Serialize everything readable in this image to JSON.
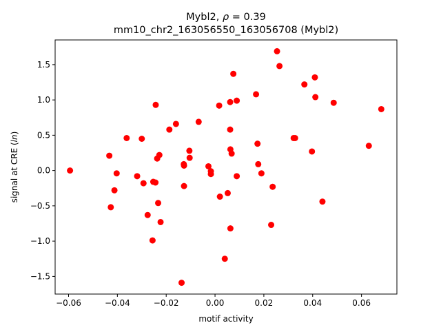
{
  "chart_data": {
    "type": "scatter",
    "title_line1_prefix": "Mybl2, ",
    "title_line1_rho": "ρ",
    "title_line1_suffix": " = 0.39",
    "title_line2": "mm10_chr2_163056550_163056708 (Mybl2)",
    "xlabel": "motif activity",
    "ylabel_prefix": "signal at CRE (",
    "ylabel_italic": "ln",
    "ylabel_suffix": ")",
    "xlim": [
      -0.0655,
      0.0745
    ],
    "ylim": [
      -1.75,
      1.85
    ],
    "xticks": [
      -0.06,
      -0.04,
      -0.02,
      0.0,
      0.02,
      0.04,
      0.06
    ],
    "xtick_labels": [
      "−0.06",
      "−0.04",
      "−0.02",
      "0.00",
      "0.02",
      "0.04",
      "0.06"
    ],
    "yticks": [
      -1.5,
      -1.0,
      -0.5,
      0.0,
      0.5,
      1.0,
      1.5
    ],
    "ytick_labels": [
      "−1.5",
      "−1.0",
      "−0.5",
      "0.0",
      "0.5",
      "1.0",
      "1.5"
    ],
    "grid": false,
    "legend": "none",
    "marker_color": "#ff0000",
    "points": [
      {
        "x": -0.0594,
        "y": 0.0
      },
      {
        "x": -0.0433,
        "y": 0.21
      },
      {
        "x": -0.0427,
        "y": -0.52
      },
      {
        "x": -0.0412,
        "y": -0.28
      },
      {
        "x": -0.0403,
        "y": -0.04
      },
      {
        "x": -0.0362,
        "y": 0.46
      },
      {
        "x": -0.0319,
        "y": -0.08
      },
      {
        "x": -0.03,
        "y": 0.45
      },
      {
        "x": -0.0293,
        "y": -0.18
      },
      {
        "x": -0.0276,
        "y": -0.63
      },
      {
        "x": -0.0256,
        "y": -0.99
      },
      {
        "x": -0.0253,
        "y": -0.16
      },
      {
        "x": -0.0244,
        "y": -0.17
      },
      {
        "x": -0.0243,
        "y": 0.93
      },
      {
        "x": -0.0237,
        "y": 0.17
      },
      {
        "x": -0.0233,
        "y": -0.46
      },
      {
        "x": -0.0228,
        "y": 0.22
      },
      {
        "x": -0.0223,
        "y": -0.73
      },
      {
        "x": -0.0187,
        "y": 0.58
      },
      {
        "x": -0.016,
        "y": 0.66
      },
      {
        "x": -0.0137,
        "y": -1.59
      },
      {
        "x": -0.0128,
        "y": 0.09
      },
      {
        "x": -0.0127,
        "y": 0.07
      },
      {
        "x": -0.0127,
        "y": -0.22
      },
      {
        "x": -0.0105,
        "y": 0.28
      },
      {
        "x": -0.0104,
        "y": 0.18
      },
      {
        "x": -0.0067,
        "y": 0.69
      },
      {
        "x": -0.0027,
        "y": 0.06
      },
      {
        "x": -0.0017,
        "y": -0.01
      },
      {
        "x": -0.0017,
        "y": -0.05
      },
      {
        "x": 0.0017,
        "y": 0.92
      },
      {
        "x": 0.002,
        "y": -0.37
      },
      {
        "x": 0.004,
        "y": -1.25
      },
      {
        "x": 0.0052,
        "y": -0.32
      },
      {
        "x": 0.0062,
        "y": 0.97
      },
      {
        "x": 0.0062,
        "y": 0.58
      },
      {
        "x": 0.0063,
        "y": 0.3
      },
      {
        "x": 0.0063,
        "y": -0.82
      },
      {
        "x": 0.0068,
        "y": 0.24
      },
      {
        "x": 0.0075,
        "y": 1.37
      },
      {
        "x": 0.0089,
        "y": 0.99
      },
      {
        "x": 0.0089,
        "y": -0.08
      },
      {
        "x": 0.0168,
        "y": 1.08
      },
      {
        "x": 0.0174,
        "y": 0.38
      },
      {
        "x": 0.0177,
        "y": 0.09
      },
      {
        "x": 0.019,
        "y": -0.04
      },
      {
        "x": 0.023,
        "y": -0.77
      },
      {
        "x": 0.0236,
        "y": -0.23
      },
      {
        "x": 0.0254,
        "y": 1.69
      },
      {
        "x": 0.0264,
        "y": 1.48
      },
      {
        "x": 0.0322,
        "y": 0.46
      },
      {
        "x": 0.0328,
        "y": 0.46
      },
      {
        "x": 0.0366,
        "y": 1.22
      },
      {
        "x": 0.0397,
        "y": 0.27
      },
      {
        "x": 0.0409,
        "y": 1.32
      },
      {
        "x": 0.0411,
        "y": 1.04
      },
      {
        "x": 0.044,
        "y": -0.44
      },
      {
        "x": 0.0486,
        "y": 0.96
      },
      {
        "x": 0.063,
        "y": 0.35
      },
      {
        "x": 0.0681,
        "y": 0.87
      }
    ]
  }
}
